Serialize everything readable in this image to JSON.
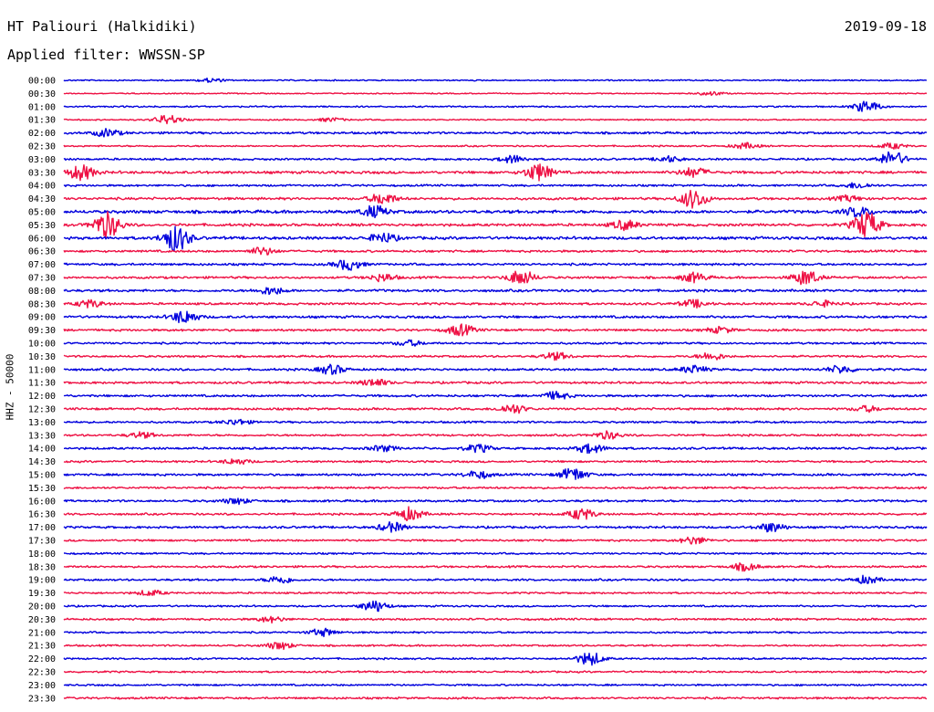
{
  "header": {
    "station": "HT Paliouri (Halkidiki)",
    "date": "2019-09-18",
    "filter_prefix": "Applied filter:",
    "filter_name": "WWSSN-SP"
  },
  "component_label": "HHZ - 50000",
  "colors": {
    "even_trace": "#0000dd",
    "odd_trace": "#ee1144"
  },
  "chart_data": {
    "type": "line",
    "title": "HT Paliouri (Halkidiki)",
    "subtitle": "Applied filter: WWSSN-SP",
    "ylabel": "HHZ - 50000",
    "date": "2019-09-18",
    "row_labels": [
      "00:00",
      "00:30",
      "01:00",
      "01:30",
      "02:00",
      "02:30",
      "03:00",
      "03:30",
      "04:00",
      "04:30",
      "05:00",
      "05:30",
      "06:00",
      "06:30",
      "07:00",
      "07:30",
      "08:00",
      "08:30",
      "09:00",
      "09:30",
      "10:00",
      "10:30",
      "11:00",
      "11:30",
      "12:00",
      "12:30",
      "13:00",
      "13:30",
      "14:00",
      "14:30",
      "15:00",
      "15:30",
      "16:00",
      "16:30",
      "17:00",
      "17:30",
      "18:00",
      "18:30",
      "19:00",
      "19:30",
      "20:00",
      "20:30",
      "21:00",
      "21:30",
      "22:00",
      "22:30",
      "23:00",
      "23:30"
    ],
    "row_duration_minutes": 30,
    "series_colors": [
      "#0000dd",
      "#ee1144"
    ],
    "noise_levels": [
      0.6,
      0.5,
      0.7,
      0.6,
      1.0,
      0.7,
      0.9,
      1.2,
      0.9,
      1.1,
      1.4,
      1.2,
      1.3,
      1.0,
      1.0,
      1.0,
      1.1,
      1.0,
      1.1,
      1.0,
      0.9,
      0.9,
      1.0,
      1.0,
      1.0,
      1.0,
      0.9,
      0.9,
      1.0,
      0.9,
      1.0,
      0.9,
      1.0,
      0.9,
      1.0,
      0.9,
      0.8,
      0.9,
      0.9,
      0.8,
      0.8,
      0.9,
      0.8,
      0.8,
      0.8,
      0.8,
      0.8,
      0.9
    ],
    "bursts": [
      {
        "row": "00:00",
        "t": 0.17,
        "amp": 2
      },
      {
        "row": "00:30",
        "t": 0.75,
        "amp": 2
      },
      {
        "row": "01:00",
        "t": 0.93,
        "amp": 6
      },
      {
        "row": "01:30",
        "t": 0.12,
        "amp": 5
      },
      {
        "row": "01:30",
        "t": 0.31,
        "amp": 2
      },
      {
        "row": "02:00",
        "t": 0.05,
        "amp": 4
      },
      {
        "row": "02:30",
        "t": 0.79,
        "amp": 3
      },
      {
        "row": "02:30",
        "t": 0.96,
        "amp": 3
      },
      {
        "row": "03:00",
        "t": 0.52,
        "amp": 4
      },
      {
        "row": "03:00",
        "t": 0.7,
        "amp": 3
      },
      {
        "row": "03:00",
        "t": 0.96,
        "amp": 8
      },
      {
        "row": "03:30",
        "t": 0.02,
        "amp": 8
      },
      {
        "row": "03:30",
        "t": 0.55,
        "amp": 9
      },
      {
        "row": "03:30",
        "t": 0.73,
        "amp": 5
      },
      {
        "row": "04:00",
        "t": 0.92,
        "amp": 3
      },
      {
        "row": "04:30",
        "t": 0.37,
        "amp": 6
      },
      {
        "row": "04:30",
        "t": 0.73,
        "amp": 10
      },
      {
        "row": "04:30",
        "t": 0.91,
        "amp": 3
      },
      {
        "row": "05:00",
        "t": 0.36,
        "amp": 6
      },
      {
        "row": "05:00",
        "t": 0.92,
        "amp": 5
      },
      {
        "row": "05:30",
        "t": 0.05,
        "amp": 14
      },
      {
        "row": "05:30",
        "t": 0.65,
        "amp": 5
      },
      {
        "row": "05:30",
        "t": 0.93,
        "amp": 14
      },
      {
        "row": "06:00",
        "t": 0.13,
        "amp": 14
      },
      {
        "row": "06:00",
        "t": 0.37,
        "amp": 5
      },
      {
        "row": "06:30",
        "t": 0.23,
        "amp": 4
      },
      {
        "row": "07:00",
        "t": 0.33,
        "amp": 6
      },
      {
        "row": "07:30",
        "t": 0.37,
        "amp": 4
      },
      {
        "row": "07:30",
        "t": 0.53,
        "amp": 8
      },
      {
        "row": "07:30",
        "t": 0.73,
        "amp": 5
      },
      {
        "row": "07:30",
        "t": 0.86,
        "amp": 8
      },
      {
        "row": "08:00",
        "t": 0.24,
        "amp": 4
      },
      {
        "row": "08:30",
        "t": 0.03,
        "amp": 4
      },
      {
        "row": "08:30",
        "t": 0.73,
        "amp": 4
      },
      {
        "row": "08:30",
        "t": 0.88,
        "amp": 3
      },
      {
        "row": "09:00",
        "t": 0.14,
        "amp": 7
      },
      {
        "row": "09:30",
        "t": 0.46,
        "amp": 6
      },
      {
        "row": "09:30",
        "t": 0.76,
        "amp": 3
      },
      {
        "row": "10:00",
        "t": 0.4,
        "amp": 3
      },
      {
        "row": "10:30",
        "t": 0.57,
        "amp": 4
      },
      {
        "row": "10:30",
        "t": 0.75,
        "amp": 4
      },
      {
        "row": "11:00",
        "t": 0.31,
        "amp": 5
      },
      {
        "row": "11:00",
        "t": 0.73,
        "amp": 4
      },
      {
        "row": "11:00",
        "t": 0.9,
        "amp": 4
      },
      {
        "row": "11:30",
        "t": 0.36,
        "amp": 4
      },
      {
        "row": "12:00",
        "t": 0.57,
        "amp": 4
      },
      {
        "row": "12:30",
        "t": 0.52,
        "amp": 5
      },
      {
        "row": "12:30",
        "t": 0.93,
        "amp": 3
      },
      {
        "row": "13:00",
        "t": 0.2,
        "amp": 3
      },
      {
        "row": "13:30",
        "t": 0.09,
        "amp": 3
      },
      {
        "row": "13:30",
        "t": 0.63,
        "amp": 4
      },
      {
        "row": "14:00",
        "t": 0.37,
        "amp": 3
      },
      {
        "row": "14:00",
        "t": 0.48,
        "amp": 4
      },
      {
        "row": "14:00",
        "t": 0.61,
        "amp": 5
      },
      {
        "row": "14:30",
        "t": 0.2,
        "amp": 3
      },
      {
        "row": "15:00",
        "t": 0.48,
        "amp": 4
      },
      {
        "row": "15:00",
        "t": 0.59,
        "amp": 7
      },
      {
        "row": "16:00",
        "t": 0.2,
        "amp": 3
      },
      {
        "row": "16:30",
        "t": 0.4,
        "amp": 7
      },
      {
        "row": "16:30",
        "t": 0.6,
        "amp": 6
      },
      {
        "row": "17:00",
        "t": 0.38,
        "amp": 5
      },
      {
        "row": "17:00",
        "t": 0.82,
        "amp": 5
      },
      {
        "row": "17:30",
        "t": 0.73,
        "amp": 4
      },
      {
        "row": "18:30",
        "t": 0.79,
        "amp": 4
      },
      {
        "row": "19:00",
        "t": 0.25,
        "amp": 4
      },
      {
        "row": "19:00",
        "t": 0.93,
        "amp": 4
      },
      {
        "row": "19:30",
        "t": 0.1,
        "amp": 3
      },
      {
        "row": "20:00",
        "t": 0.36,
        "amp": 6
      },
      {
        "row": "20:30",
        "t": 0.24,
        "amp": 3
      },
      {
        "row": "21:00",
        "t": 0.3,
        "amp": 4
      },
      {
        "row": "21:30",
        "t": 0.25,
        "amp": 4
      },
      {
        "row": "22:00",
        "t": 0.61,
        "amp": 7
      }
    ]
  }
}
